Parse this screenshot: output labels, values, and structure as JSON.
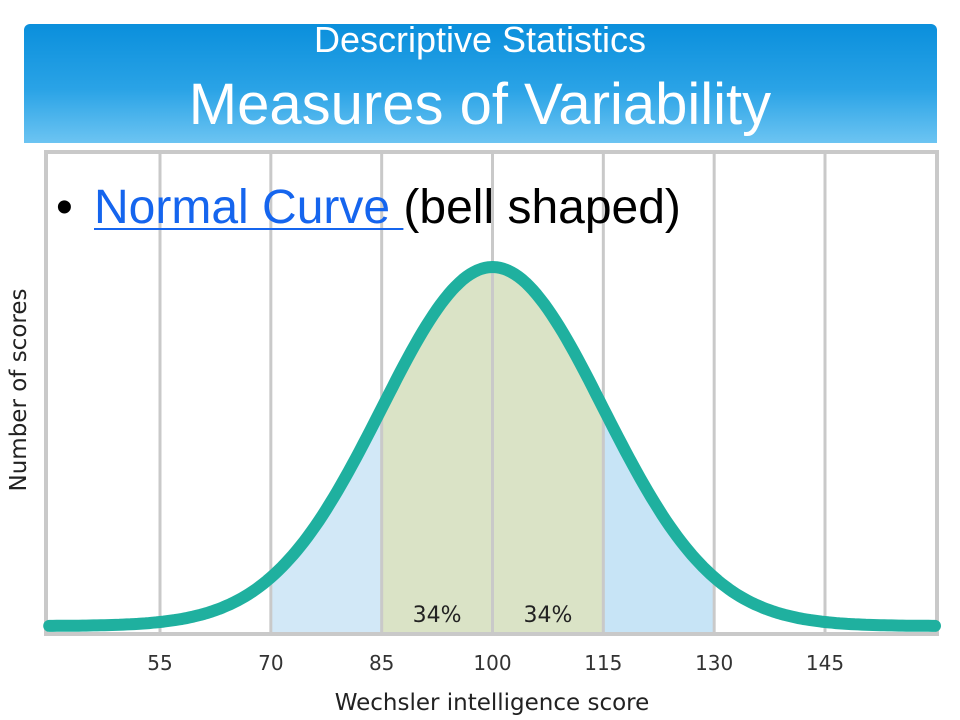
{
  "header": {
    "subtitle": "Descriptive Statistics",
    "title": "Measures of Variability"
  },
  "bullet": {
    "marker": "•",
    "link_text": "Normal Curve ",
    "rest_text": "(bell shaped)"
  },
  "chart_data": {
    "type": "area",
    "title": "",
    "xlabel": "Wechsler intelligence score",
    "ylabel": "Number of scores",
    "xlim": [
      40,
      160
    ],
    "ylim": [
      0,
      1.05
    ],
    "grid": true,
    "ticks": [
      55,
      70,
      85,
      100,
      115,
      130,
      145
    ],
    "distribution": {
      "mean": 100,
      "sd": 15
    },
    "regions": [
      {
        "from": 70,
        "to": 85,
        "color": "#d2e8f7"
      },
      {
        "from": 85,
        "to": 115,
        "color": "#dae3c6"
      },
      {
        "from": 115,
        "to": 130,
        "color": "#c7e4f6"
      }
    ],
    "annotations": [
      {
        "text": "34%",
        "x": 92.5
      },
      {
        "text": "34%",
        "x": 107.5
      }
    ],
    "curve_color": "#1fb09f"
  }
}
